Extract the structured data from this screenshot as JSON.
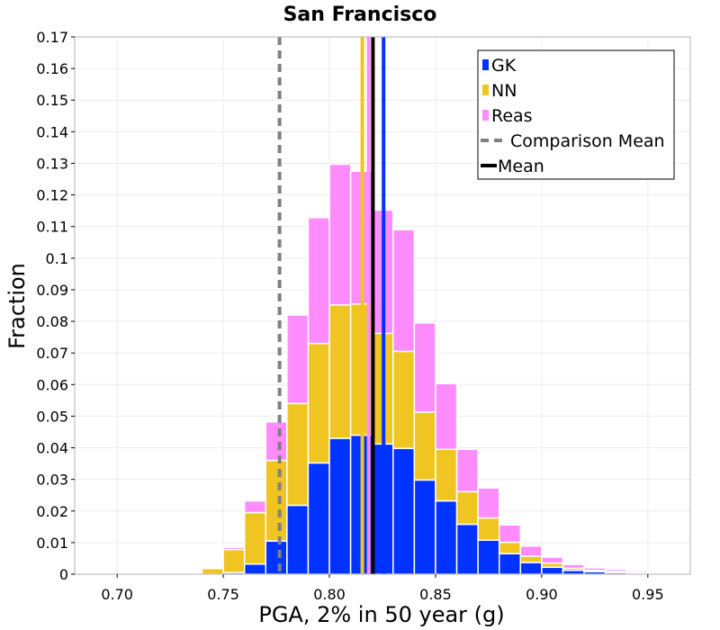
{
  "chart_data": {
    "type": "bar",
    "stacked": true,
    "title": "San Francisco",
    "xlabel": "PGA, 2% in 50 year (g)",
    "ylabel": "Fraction",
    "xlim": [
      0.68,
      0.97
    ],
    "ylim": [
      0,
      0.17
    ],
    "bin_width": 0.01,
    "x": [
      0.73,
      0.74,
      0.75,
      0.76,
      0.77,
      0.78,
      0.79,
      0.8,
      0.81,
      0.82,
      0.83,
      0.84,
      0.85,
      0.86,
      0.87,
      0.88,
      0.89,
      0.9,
      0.91,
      0.92,
      0.93,
      0.94,
      0.95
    ],
    "series": [
      {
        "name": "GK",
        "color": "#0033ff",
        "values": [
          0.0,
          0.0,
          0.0005,
          0.0032,
          0.0105,
          0.0218,
          0.0352,
          0.043,
          0.044,
          0.0412,
          0.0398,
          0.0298,
          0.0232,
          0.0158,
          0.0108,
          0.0065,
          0.0037,
          0.0022,
          0.0012,
          0.0008,
          0.0005,
          0.0004,
          0.0001
        ]
      },
      {
        "name": "NN",
        "color": "#f0c521",
        "values": [
          0.0,
          0.0018,
          0.0073,
          0.0163,
          0.0255,
          0.0322,
          0.0378,
          0.0422,
          0.0415,
          0.035,
          0.0307,
          0.0215,
          0.0163,
          0.0103,
          0.007,
          0.0036,
          0.002,
          0.0013,
          0.0007,
          0.0004,
          0.0003,
          0.0002,
          0.0001
        ]
      },
      {
        "name": "Reas",
        "color": "#ff8cff",
        "values": [
          0.0003,
          0.0003,
          0.0007,
          0.0037,
          0.0122,
          0.028,
          0.0398,
          0.0445,
          0.042,
          0.039,
          0.0385,
          0.0282,
          0.0208,
          0.0134,
          0.0095,
          0.0055,
          0.0032,
          0.0019,
          0.0012,
          0.0008,
          0.0007,
          0.0005,
          0.0001
        ]
      }
    ],
    "vertical_lines": [
      {
        "name": "Comparison Mean",
        "x": 0.7765,
        "color": "#808080",
        "style": "dashed",
        "in_legend": true
      },
      {
        "name": "Mean",
        "x": 0.8205,
        "color": "#000000",
        "style": "solid",
        "in_legend": true
      },
      {
        "name": "NN mean",
        "x": 0.8155,
        "color": "#f0c521",
        "style": "solid",
        "in_legend": false
      },
      {
        "name": "GK mean",
        "x": 0.8255,
        "color": "#0033ff",
        "style": "solid",
        "in_legend": false
      },
      {
        "name": "Reas mean",
        "x": 0.8185,
        "color": "#ff8cff",
        "style": "solid",
        "in_legend": false
      }
    ],
    "x_ticks": [
      "0.70",
      "0.75",
      "0.80",
      "0.85",
      "0.90",
      "0.95"
    ],
    "x_tick_values": [
      0.7,
      0.75,
      0.8,
      0.85,
      0.9,
      0.95
    ],
    "y_ticks": [
      "0",
      "0.01",
      "0.02",
      "0.03",
      "0.04",
      "0.05",
      "0.06",
      "0.07",
      "0.08",
      "0.09",
      "0.1",
      "0.11",
      "0.12",
      "0.13",
      "0.14",
      "0.15",
      "0.16",
      "0.17"
    ],
    "y_tick_values": [
      0,
      0.01,
      0.02,
      0.03,
      0.04,
      0.05,
      0.06,
      0.07,
      0.08,
      0.09,
      0.1,
      0.11,
      0.12,
      0.13,
      0.14,
      0.15,
      0.16,
      0.17
    ],
    "legend": {
      "placement": "top-right",
      "entries": [
        {
          "label": "GK",
          "kind": "patch",
          "color": "#0033ff"
        },
        {
          "label": "NN",
          "kind": "patch",
          "color": "#f0c521"
        },
        {
          "label": "Reas",
          "kind": "patch",
          "color": "#ff8cff"
        },
        {
          "label": "Comparison Mean",
          "kind": "dashed-line",
          "color": "#808080"
        },
        {
          "label": "Mean",
          "kind": "line",
          "color": "#000000"
        }
      ]
    },
    "grid": true
  }
}
